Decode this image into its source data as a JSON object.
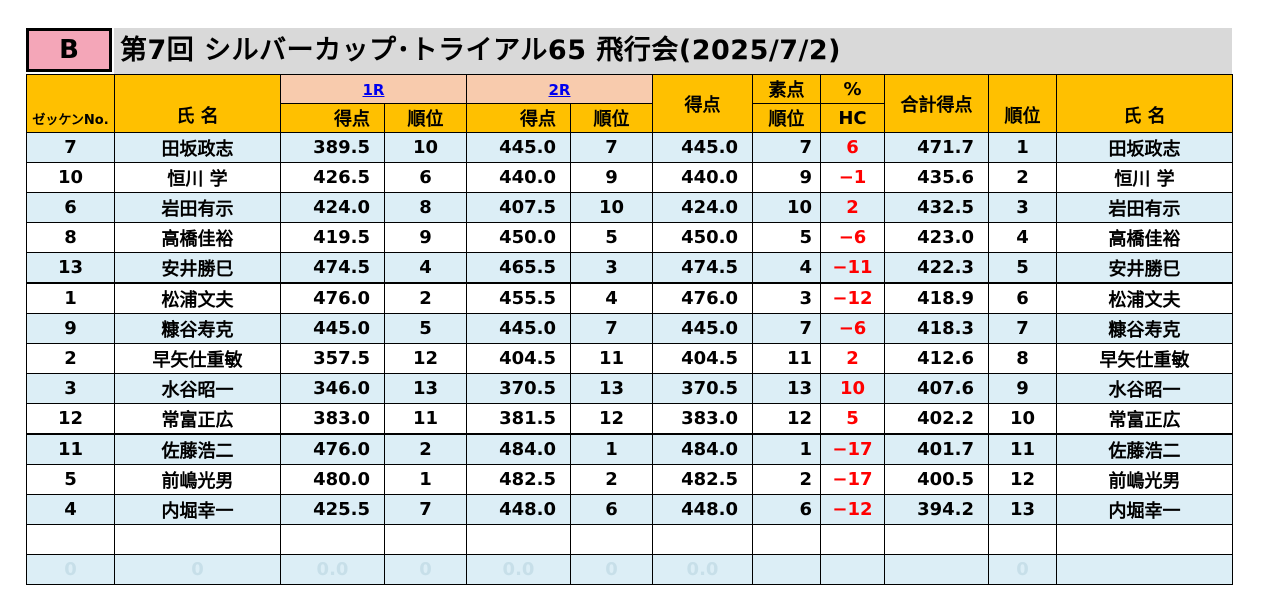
{
  "badge": "B",
  "title": "第7回 シルバーカップ･トライアル65 飛行会(2025/7/2)",
  "headers": {
    "zekken": "ゼッケンNo.",
    "name": "氏 名",
    "round1": "1R",
    "round2": "2R",
    "score": "得点",
    "rank": "順位",
    "raw_score": "得点",
    "raw_top": "素点",
    "raw_rank": "順位",
    "pct": "%",
    "hc": "HC",
    "total": "合計得点",
    "final_rank": "順位",
    "final_name": "氏 名"
  },
  "rows": [
    {
      "no": "7",
      "name": "田坂政志",
      "r1": "389.5",
      "r1rank": "10",
      "r2": "445.0",
      "r2rank": "7",
      "best": "445.0",
      "bestrank": "7",
      "hc": "6",
      "total": "471.7",
      "place": "1",
      "pname": "田坂政志"
    },
    {
      "no": "10",
      "name": "恒川 学",
      "r1": "426.5",
      "r1rank": "6",
      "r2": "440.0",
      "r2rank": "9",
      "best": "440.0",
      "bestrank": "9",
      "hc": "−1",
      "total": "435.6",
      "place": "2",
      "pname": "恒川 学"
    },
    {
      "no": "6",
      "name": "岩田有示",
      "r1": "424.0",
      "r1rank": "8",
      "r2": "407.5",
      "r2rank": "10",
      "best": "424.0",
      "bestrank": "10",
      "hc": "2",
      "total": "432.5",
      "place": "3",
      "pname": "岩田有示"
    },
    {
      "no": "8",
      "name": "高橋佳裕",
      "r1": "419.5",
      "r1rank": "9",
      "r2": "450.0",
      "r2rank": "5",
      "best": "450.0",
      "bestrank": "5",
      "hc": "−6",
      "total": "423.0",
      "place": "4",
      "pname": "高橋佳裕"
    },
    {
      "no": "13",
      "name": "安井勝巳",
      "r1": "474.5",
      "r1rank": "4",
      "r2": "465.5",
      "r2rank": "3",
      "best": "474.5",
      "bestrank": "4",
      "hc": "−11",
      "total": "422.3",
      "place": "5",
      "pname": "安井勝巳"
    },
    {
      "no": "1",
      "name": "松浦文夫",
      "r1": "476.0",
      "r1rank": "2",
      "r2": "455.5",
      "r2rank": "4",
      "best": "476.0",
      "bestrank": "3",
      "hc": "−12",
      "total": "418.9",
      "place": "6",
      "pname": "松浦文夫"
    },
    {
      "no": "9",
      "name": "糠谷寿克",
      "r1": "445.0",
      "r1rank": "5",
      "r2": "445.0",
      "r2rank": "7",
      "best": "445.0",
      "bestrank": "7",
      "hc": "−6",
      "total": "418.3",
      "place": "7",
      "pname": "糠谷寿克"
    },
    {
      "no": "2",
      "name": "早矢仕重敏",
      "r1": "357.5",
      "r1rank": "12",
      "r2": "404.5",
      "r2rank": "11",
      "best": "404.5",
      "bestrank": "11",
      "hc": "2",
      "total": "412.6",
      "place": "8",
      "pname": "早矢仕重敏"
    },
    {
      "no": "3",
      "name": "水谷昭一",
      "r1": "346.0",
      "r1rank": "13",
      "r2": "370.5",
      "r2rank": "13",
      "best": "370.5",
      "bestrank": "13",
      "hc": "10",
      "total": "407.6",
      "place": "9",
      "pname": "水谷昭一"
    },
    {
      "no": "12",
      "name": "常富正広",
      "r1": "383.0",
      "r1rank": "11",
      "r2": "381.5",
      "r2rank": "12",
      "best": "383.0",
      "bestrank": "12",
      "hc": "5",
      "total": "402.2",
      "place": "10",
      "pname": "常富正広"
    },
    {
      "no": "11",
      "name": "佐藤浩二",
      "r1": "476.0",
      "r1rank": "2",
      "r2": "484.0",
      "r2rank": "1",
      "best": "484.0",
      "bestrank": "1",
      "hc": "−17",
      "total": "401.7",
      "place": "11",
      "pname": "佐藤浩二"
    },
    {
      "no": "5",
      "name": "前嶋光男",
      "r1": "480.0",
      "r1rank": "1",
      "r2": "482.5",
      "r2rank": "2",
      "best": "482.5",
      "bestrank": "2",
      "hc": "−17",
      "total": "400.5",
      "place": "12",
      "pname": "前嶋光男"
    },
    {
      "no": "4",
      "name": "内堀幸一",
      "r1": "425.5",
      "r1rank": "7",
      "r2": "448.0",
      "r2rank": "6",
      "best": "448.0",
      "bestrank": "6",
      "hc": "−12",
      "total": "394.2",
      "place": "13",
      "pname": "内堀幸一"
    }
  ],
  "ghost_row": {
    "no": "0",
    "name": "0",
    "r1": "0.0",
    "r1rank": "0",
    "r2": "0.0",
    "r2rank": "0",
    "best": "0.0",
    "place": "0"
  }
}
